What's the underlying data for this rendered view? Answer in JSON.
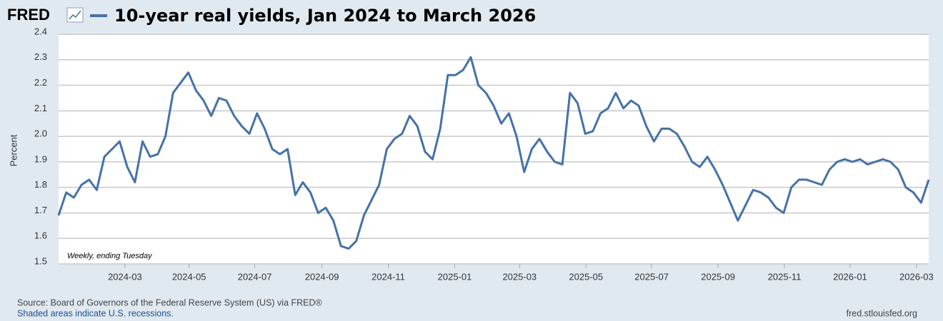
{
  "chart_data": {
    "type": "line",
    "logo": "FRED",
    "series": [
      {
        "name": "10-year real yields, Jan 2024 to March 2026",
        "color": "#4572a7",
        "values": [
          1.69,
          1.78,
          1.76,
          1.81,
          1.83,
          1.79,
          1.92,
          1.95,
          1.98,
          1.88,
          1.82,
          1.98,
          1.92,
          1.93,
          2.0,
          2.17,
          2.21,
          2.25,
          2.18,
          2.14,
          2.08,
          2.15,
          2.14,
          2.08,
          2.04,
          2.01,
          2.09,
          2.03,
          1.95,
          1.93,
          1.95,
          1.77,
          1.82,
          1.78,
          1.7,
          1.72,
          1.67,
          1.57,
          1.56,
          1.59,
          1.69,
          1.75,
          1.81,
          1.95,
          1.99,
          2.01,
          2.08,
          2.04,
          1.94,
          1.91,
          2.03,
          2.24,
          2.24,
          2.26,
          2.31,
          2.2,
          2.17,
          2.12,
          2.05,
          2.09,
          2.0,
          1.86,
          1.95,
          1.99,
          1.94,
          1.9,
          1.89,
          2.17,
          2.13,
          2.01,
          2.02,
          2.09,
          2.11,
          2.17,
          2.11,
          2.14,
          2.12,
          2.04,
          1.98,
          2.03,
          2.03,
          2.01,
          1.96,
          1.9,
          1.88,
          1.92,
          1.87,
          1.81,
          1.74,
          1.67,
          1.73,
          1.79,
          1.78,
          1.76,
          1.72,
          1.7,
          1.8,
          1.83,
          1.83,
          1.82,
          1.81,
          1.87,
          1.9,
          1.91,
          1.9,
          1.91,
          1.89,
          1.9,
          1.91,
          1.9,
          1.87,
          1.8,
          1.78,
          1.74,
          1.83
        ]
      }
    ],
    "ylabel": "Percent",
    "annotation": "Weekly, ending Tuesday",
    "xlim": [
      0,
      114
    ],
    "xticks": [
      {
        "value": 8.7,
        "label": "2024-03"
      },
      {
        "value": 17.1,
        "label": "2024-05"
      },
      {
        "value": 25.7,
        "label": "2024-07"
      },
      {
        "value": 34.5,
        "label": "2024-09"
      },
      {
        "value": 43.2,
        "label": "2024-11"
      },
      {
        "value": 51.9,
        "label": "2025-01"
      },
      {
        "value": 60.4,
        "label": "2025-03"
      },
      {
        "value": 69.1,
        "label": "2025-05"
      },
      {
        "value": 77.7,
        "label": "2025-07"
      },
      {
        "value": 86.4,
        "label": "2025-09"
      },
      {
        "value": 95.1,
        "label": "2025-11"
      },
      {
        "value": 103.7,
        "label": "2026-01"
      },
      {
        "value": 112.4,
        "label": "2026-03"
      }
    ],
    "ylim": [
      1.5,
      2.4
    ],
    "yticks": [
      1.5,
      1.6,
      1.7,
      1.8,
      1.9,
      {
        "value": 2,
        "label": "2.0"
      },
      2.1,
      2.2,
      2.3,
      2.4
    ],
    "grid": true,
    "source": "Source: Board of Governors of the Federal Reserve System (US) via FRED®",
    "note": "Shaded areas indicate U.S. recessions.",
    "url": "fred.stlouisfed.org"
  }
}
